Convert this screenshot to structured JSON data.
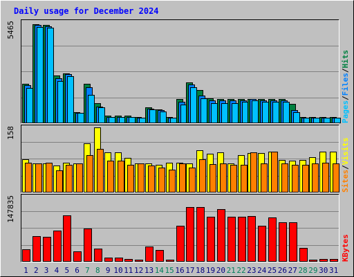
{
  "chart_data": {
    "type": "bar",
    "title": "Daily usage for December 2024",
    "x": [
      "1",
      "2",
      "3",
      "4",
      "5",
      "6",
      "7",
      "8",
      "9",
      "10",
      "11",
      "12",
      "13",
      "14",
      "15",
      "16",
      "17",
      "18",
      "19",
      "20",
      "21",
      "22",
      "23",
      "24",
      "25",
      "26",
      "27",
      "28",
      "29",
      "30",
      "31"
    ],
    "weekend_days": [
      "7",
      "8",
      "14",
      "15",
      "21",
      "22",
      "28",
      "29"
    ],
    "colors": {
      "hits": "#008040",
      "files": "#0080ff",
      "pages": "#00c0ff",
      "visits": "#ffff00",
      "sites": "#ff8000",
      "kbytes": "#ff0000",
      "background": "#c0c0c0",
      "title": "#0000ff",
      "weekday_label": "#000080",
      "weekend_label": "#00805c"
    },
    "panels": [
      {
        "name": "hits-files-pages",
        "ymax_label": "5465",
        "ylim": [
          0,
          5465
        ],
        "legend": [
          {
            "text": "Pages",
            "color": "#00c0ff"
          },
          {
            "text": "/",
            "color": "#000000"
          },
          {
            "text": "Files",
            "color": "#0080ff"
          },
          {
            "text": "/",
            "color": "#000000"
          },
          {
            "text": "Hits",
            "color": "#008040"
          }
        ],
        "series": [
          {
            "name": "Hits",
            "values": [
              2150,
              5350,
              5300,
              2600,
              2700,
              600,
              2150,
              1100,
              400,
              400,
              400,
              350,
              850,
              750,
              350,
              1300,
              2200,
              1800,
              1350,
              1300,
              1300,
              1300,
              1300,
              1300,
              1300,
              1300,
              1050,
              350,
              350,
              350,
              350
            ]
          },
          {
            "name": "Files",
            "values": [
              2050,
              5300,
              5250,
              2450,
              2650,
              550,
              1950,
              900,
              350,
              350,
              350,
              300,
              800,
              700,
              300,
              1150,
              2100,
              1500,
              1250,
              1250,
              1250,
              1250,
              1300,
              1250,
              1250,
              1250,
              700,
              300,
              300,
              300,
              300
            ]
          },
          {
            "name": "Pages",
            "values": [
              1900,
              5200,
              5150,
              2300,
              2550,
              550,
              1550,
              850,
              350,
              350,
              350,
              300,
              750,
              650,
              300,
              1000,
              1950,
              1350,
              1100,
              1100,
              1100,
              1150,
              1250,
              1150,
              1150,
              1150,
              600,
              300,
              300,
              300,
              300
            ]
          }
        ]
      },
      {
        "name": "visits-sites",
        "ymax_label": "158",
        "ylim": [
          0,
          158
        ],
        "legend": [
          {
            "text": "Sites",
            "color": "#ff8000"
          },
          {
            "text": "/",
            "color": "#000000"
          },
          {
            "text": "Visits",
            "color": "#ffff00"
          }
        ],
        "series": [
          {
            "name": "Visits",
            "values": [
              80,
              70,
              71,
              66,
              72,
              70,
              120,
              158,
              98,
              98,
              84,
              70,
              71,
              68,
              72,
              72,
              70,
              102,
              94,
              98,
              70,
              90,
              95,
              95,
              100,
              79,
              78,
              79,
              86,
              100,
              100
            ]
          },
          {
            "name": "Sites",
            "values": [
              72,
              70,
              72,
              54,
              67,
              71,
              90,
              106,
              77,
              78,
              68,
              70,
              65,
              60,
              55,
              70,
              60,
              80,
              69,
              70,
              67,
              67,
              98,
              70,
              100,
              70,
              67,
              67,
              70,
              72,
              70
            ]
          }
        ]
      },
      {
        "name": "kbytes",
        "ymax_label": "147835",
        "ylim": [
          0,
          147835
        ],
        "legend": [
          {
            "text": "KBytes",
            "color": "#ff0000"
          }
        ],
        "series": [
          {
            "name": "KBytes",
            "values": [
              28000,
              58000,
              56000,
              71000,
              106000,
              23000,
              75000,
              30000,
              10000,
              9000,
              6000,
              5000,
              35000,
              27000,
              5000,
              82000,
              124000,
              124000,
              102000,
              119000,
              102000,
              103000,
              104000,
              82000,
              100000,
              89000,
              89000,
              31000,
              4000,
              7000,
              7000
            ]
          }
        ]
      }
    ]
  }
}
